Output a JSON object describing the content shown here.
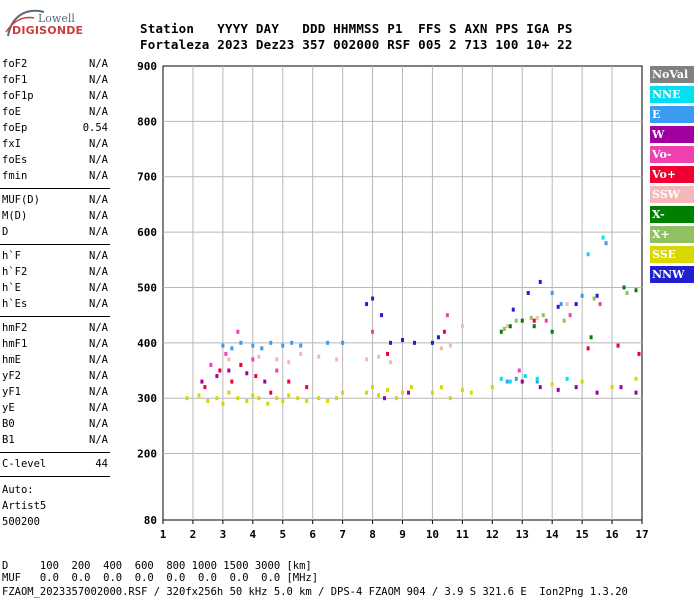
{
  "logo": {
    "top": "Lowell",
    "bottom": "DIGISONDE"
  },
  "header": {
    "line1": "Station   YYYY DAY   DDD HHMMSS P1  FFS S AXN PPS IGA PS",
    "line2": "Fortaleza 2023 Dez23 357 002000 RSF 005 2 713 100 10+ 22"
  },
  "params": {
    "group1": [
      {
        "name": "foF2",
        "value": "N/A"
      },
      {
        "name": "foF1",
        "value": "N/A"
      },
      {
        "name": "foF1p",
        "value": "N/A"
      },
      {
        "name": "foE",
        "value": "N/A"
      },
      {
        "name": "foEp",
        "value": "0.54"
      },
      {
        "name": "fxI",
        "value": "N/A"
      },
      {
        "name": "foEs",
        "value": "N/A"
      },
      {
        "name": "fmin",
        "value": "N/A"
      }
    ],
    "group2": [
      {
        "name": "MUF(D)",
        "value": "N/A"
      },
      {
        "name": "M(D)",
        "value": "N/A"
      },
      {
        "name": "D",
        "value": "N/A"
      }
    ],
    "group3": [
      {
        "name": "h`F",
        "value": "N/A"
      },
      {
        "name": "h`F2",
        "value": "N/A"
      },
      {
        "name": "h`E",
        "value": "N/A"
      },
      {
        "name": "h`Es",
        "value": "N/A"
      }
    ],
    "group4": [
      {
        "name": "hmF2",
        "value": "N/A"
      },
      {
        "name": "hmF1",
        "value": "N/A"
      },
      {
        "name": "hmE",
        "value": "N/A"
      },
      {
        "name": "yF2",
        "value": "N/A"
      },
      {
        "name": "yF1",
        "value": "N/A"
      },
      {
        "name": "yE",
        "value": "N/A"
      },
      {
        "name": "B0",
        "value": "N/A"
      },
      {
        "name": "B1",
        "value": "N/A"
      }
    ],
    "group5": [
      {
        "name": "C-level",
        "value": "44"
      }
    ]
  },
  "autoscaler": [
    "Auto:",
    "Artist5",
    "500200"
  ],
  "footer": {
    "line1": "D     100  200  400  600  800 1000 1500 3000 [km]",
    "line2": "MUF   0.0  0.0  0.0  0.0  0.0  0.0  0.0  0.0 [MHz]",
    "line3": "FZAOM_2023357002000.RSF / 320fx256h 50 kHz 5.0 km / DPS-4 FZAOM 904 / 3.9 S 321.6 E  Ion2Png 1.3.20"
  },
  "legend": [
    {
      "label": "NoVal",
      "color": "#808080"
    },
    {
      "label": "NNE",
      "color": "#00e0f0"
    },
    {
      "label": "E",
      "color": "#3a9cf0"
    },
    {
      "label": "W",
      "color": "#a000a0"
    },
    {
      "label": "Vo-",
      "color": "#f040b0"
    },
    {
      "label": "Vo+",
      "color": "#f00030"
    },
    {
      "label": "SSW",
      "color": "#f4b8b8"
    },
    {
      "label": "X-",
      "color": "#008000"
    },
    {
      "label": "X+",
      "color": "#90c060"
    },
    {
      "label": "SSE",
      "color": "#d8d800"
    },
    {
      "label": "NNW",
      "color": "#2020d0"
    }
  ],
  "chart_data": {
    "type": "scatter",
    "x_ticks": [
      1,
      2,
      3,
      4,
      5,
      6,
      7,
      8,
      9,
      10,
      11,
      12,
      13,
      14,
      15,
      16,
      17
    ],
    "y_ticks": [
      80,
      200,
      300,
      400,
      500,
      600,
      700,
      800,
      900
    ],
    "xlim": [
      1,
      17
    ],
    "ylim": [
      80,
      900
    ],
    "grid": true,
    "legend_position": "right",
    "series": [
      {
        "name": "SSE",
        "color": "#d8d800",
        "points": [
          [
            1.8,
            300
          ],
          [
            2.2,
            305
          ],
          [
            2.5,
            295
          ],
          [
            2.8,
            300
          ],
          [
            3.0,
            290
          ],
          [
            3.2,
            310
          ],
          [
            3.5,
            300
          ],
          [
            3.8,
            295
          ],
          [
            4.0,
            305
          ],
          [
            4.2,
            300
          ],
          [
            4.5,
            290
          ],
          [
            4.8,
            300
          ],
          [
            5.0,
            295
          ],
          [
            5.2,
            305
          ],
          [
            5.5,
            300
          ],
          [
            5.8,
            295
          ],
          [
            6.2,
            300
          ],
          [
            6.5,
            295
          ],
          [
            6.8,
            300
          ],
          [
            7.0,
            310
          ],
          [
            7.8,
            310
          ],
          [
            8.0,
            320
          ],
          [
            8.2,
            305
          ],
          [
            8.5,
            315
          ],
          [
            8.8,
            300
          ],
          [
            9.0,
            310
          ],
          [
            9.3,
            320
          ],
          [
            10.0,
            310
          ],
          [
            10.3,
            320
          ],
          [
            10.6,
            300
          ],
          [
            11.0,
            315
          ],
          [
            11.3,
            310
          ],
          [
            12.0,
            320
          ],
          [
            13.0,
            330
          ],
          [
            14.0,
            325
          ],
          [
            15.0,
            330
          ],
          [
            16.0,
            320
          ],
          [
            16.8,
            335
          ]
        ]
      },
      {
        "name": "E",
        "color": "#3a9cf0",
        "points": [
          [
            3.0,
            395
          ],
          [
            3.3,
            390
          ],
          [
            3.6,
            400
          ],
          [
            4.0,
            395
          ],
          [
            4.3,
            390
          ],
          [
            4.6,
            400
          ],
          [
            5.0,
            395
          ],
          [
            5.3,
            400
          ],
          [
            5.6,
            395
          ],
          [
            6.5,
            400
          ],
          [
            7.0,
            400
          ],
          [
            12.5,
            330
          ],
          [
            12.8,
            335
          ],
          [
            13.5,
            330
          ],
          [
            14.0,
            490
          ],
          [
            14.3,
            470
          ],
          [
            15.0,
            485
          ],
          [
            15.8,
            580
          ]
        ]
      },
      {
        "name": "SSW",
        "color": "#f4b8b8",
        "points": [
          [
            3.2,
            370
          ],
          [
            3.6,
            360
          ],
          [
            4.2,
            375
          ],
          [
            4.8,
            370
          ],
          [
            5.2,
            365
          ],
          [
            5.6,
            380
          ],
          [
            6.2,
            375
          ],
          [
            6.8,
            370
          ],
          [
            7.8,
            370
          ],
          [
            8.2,
            375
          ],
          [
            8.6,
            365
          ],
          [
            10.3,
            390
          ],
          [
            10.6,
            395
          ],
          [
            11.0,
            430
          ],
          [
            12.5,
            430
          ],
          [
            13.5,
            445
          ],
          [
            14.5,
            470
          ]
        ]
      },
      {
        "name": "NNW",
        "color": "#2020d0",
        "points": [
          [
            7.8,
            470
          ],
          [
            8.0,
            480
          ],
          [
            8.3,
            450
          ],
          [
            8.6,
            400
          ],
          [
            9.0,
            405
          ],
          [
            9.4,
            400
          ],
          [
            10.0,
            400
          ],
          [
            10.2,
            410
          ],
          [
            12.7,
            460
          ],
          [
            13.2,
            490
          ],
          [
            13.6,
            510
          ],
          [
            14.2,
            465
          ],
          [
            14.8,
            470
          ],
          [
            15.5,
            485
          ]
        ]
      },
      {
        "name": "W",
        "color": "#a000a0",
        "points": [
          [
            2.3,
            330
          ],
          [
            2.8,
            340
          ],
          [
            3.2,
            350
          ],
          [
            3.8,
            345
          ],
          [
            4.4,
            330
          ],
          [
            8.4,
            300
          ],
          [
            9.2,
            310
          ],
          [
            13.0,
            330
          ],
          [
            13.6,
            320
          ],
          [
            14.2,
            315
          ],
          [
            14.8,
            320
          ],
          [
            15.5,
            310
          ],
          [
            16.3,
            320
          ],
          [
            16.8,
            310
          ]
        ]
      },
      {
        "name": "Vo+",
        "color": "#f00030",
        "points": [
          [
            2.4,
            320
          ],
          [
            2.9,
            350
          ],
          [
            3.3,
            330
          ],
          [
            3.6,
            360
          ],
          [
            4.1,
            340
          ],
          [
            4.6,
            310
          ],
          [
            5.2,
            330
          ],
          [
            5.8,
            320
          ],
          [
            8.5,
            380
          ],
          [
            10.4,
            420
          ],
          [
            13.4,
            440
          ],
          [
            15.2,
            390
          ],
          [
            16.2,
            395
          ],
          [
            16.9,
            380
          ]
        ]
      },
      {
        "name": "Vo-",
        "color": "#f040b0",
        "points": [
          [
            2.6,
            360
          ],
          [
            3.1,
            380
          ],
          [
            3.5,
            420
          ],
          [
            4.0,
            370
          ],
          [
            4.8,
            350
          ],
          [
            8.0,
            420
          ],
          [
            10.5,
            450
          ],
          [
            12.9,
            350
          ],
          [
            13.8,
            440
          ],
          [
            14.6,
            450
          ],
          [
            15.6,
            470
          ]
        ]
      },
      {
        "name": "X-",
        "color": "#008000",
        "points": [
          [
            12.3,
            420
          ],
          [
            12.6,
            430
          ],
          [
            13.0,
            440
          ],
          [
            13.4,
            430
          ],
          [
            14.0,
            420
          ],
          [
            15.3,
            410
          ],
          [
            16.4,
            500
          ],
          [
            16.8,
            495
          ]
        ]
      },
      {
        "name": "X+",
        "color": "#90c060",
        "points": [
          [
            12.4,
            425
          ],
          [
            12.8,
            440
          ],
          [
            13.3,
            445
          ],
          [
            13.7,
            450
          ],
          [
            14.4,
            440
          ],
          [
            15.4,
            480
          ],
          [
            16.5,
            490
          ]
        ]
      },
      {
        "name": "NNE",
        "color": "#00e0f0",
        "points": [
          [
            12.3,
            335
          ],
          [
            12.6,
            330
          ],
          [
            13.1,
            340
          ],
          [
            13.5,
            335
          ],
          [
            14.5,
            335
          ],
          [
            15.2,
            560
          ],
          [
            15.7,
            590
          ]
        ]
      },
      {
        "name": "NoVal",
        "color": "#808080",
        "points": []
      }
    ]
  }
}
